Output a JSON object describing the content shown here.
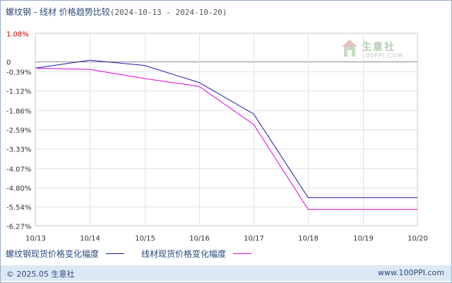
{
  "title": {
    "main": "螺纹钢 - 线材 价格趋势比较",
    "range": "(2024-10-13 - 2024-10-20)"
  },
  "legend": {
    "series1_label": "螺纹钢现货价格变化幅度",
    "series2_label": "线材现货价格变化幅度"
  },
  "footer": {
    "copyright": "© 2025.05 生意社",
    "site": "www.100PPI.com"
  },
  "watermark": {
    "text": "生意社",
    "sub": "100PPI.COM"
  },
  "colors": {
    "series1": "#1a1aa6",
    "series2": "#e000e0",
    "grid": "#e3e3e3",
    "zero_line": "#888888",
    "axis_label": "#333333",
    "top_tick": "#cc0000"
  },
  "chart_data": {
    "type": "line",
    "x": [
      "10/13",
      "10/14",
      "10/15",
      "10/16",
      "10/17",
      "10/18",
      "10/19",
      "10/20"
    ],
    "y_ticks": [
      1.08,
      0,
      -0.39,
      -1.12,
      -1.86,
      -2.59,
      -3.33,
      -4.07,
      -4.8,
      -5.54,
      -6.27
    ],
    "y_tick_labels": [
      "1.08%",
      "0",
      "-0.39%",
      "-1.12%",
      "-1.86%",
      "-2.59%",
      "-3.33%",
      "-4.07%",
      "-4.80%",
      "-5.54%",
      "-6.27%"
    ],
    "ylim": [
      -6.27,
      1.08
    ],
    "grid": true,
    "series": [
      {
        "name": "螺纹钢现货价格变化幅度",
        "values": [
          -0.25,
          0.05,
          -0.15,
          -0.8,
          -2.0,
          -5.2,
          -5.2,
          -5.2
        ]
      },
      {
        "name": "线材现货价格变化幅度",
        "values": [
          -0.25,
          -0.3,
          -0.65,
          -0.95,
          -2.4,
          -5.65,
          -5.65,
          -5.65
        ]
      }
    ]
  }
}
